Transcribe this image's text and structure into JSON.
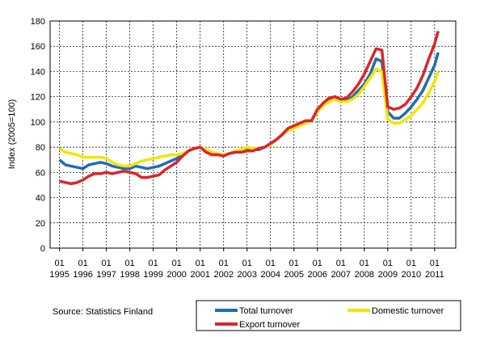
{
  "chart_data": {
    "type": "line",
    "y_label": "Index (2005=100)",
    "source": "Source: Statistics Finland",
    "x": [
      1995,
      1995.25,
      1995.5,
      1995.75,
      1996,
      1996.25,
      1996.5,
      1996.75,
      1997,
      1997.25,
      1997.5,
      1997.75,
      1998,
      1998.25,
      1998.5,
      1998.75,
      1999,
      1999.25,
      1999.5,
      1999.75,
      2000,
      2000.25,
      2000.5,
      2000.75,
      2001,
      2001.25,
      2001.5,
      2001.75,
      2002,
      2002.25,
      2002.5,
      2002.75,
      2003,
      2003.25,
      2003.5,
      2003.75,
      2004,
      2004.25,
      2004.5,
      2004.75,
      2005,
      2005.25,
      2005.5,
      2005.75,
      2006,
      2006.25,
      2006.5,
      2006.75,
      2007,
      2007.25,
      2007.5,
      2007.75,
      2008,
      2008.25,
      2008.5,
      2008.75,
      2009,
      2009.25,
      2009.5,
      2009.75,
      2010,
      2010.25,
      2010.5,
      2010.75,
      2011,
      2011.15
    ],
    "series": [
      {
        "name": "Total turnover",
        "color": "#1f6db5",
        "values": [
          70,
          66,
          65,
          64,
          63,
          66,
          67,
          68,
          67,
          65,
          64,
          63,
          63,
          65,
          64,
          63,
          64,
          65,
          67,
          69,
          71,
          74,
          77,
          79,
          80,
          77,
          75,
          74,
          74,
          75,
          76,
          77,
          78,
          78,
          78,
          80,
          82,
          86,
          90,
          94,
          96,
          98,
          100,
          101,
          108,
          114,
          117,
          120,
          117,
          117,
          120,
          125,
          130,
          138,
          150,
          148,
          108,
          103,
          103,
          107,
          112,
          118,
          125,
          135,
          145,
          155
        ]
      },
      {
        "name": "Domestic turnover",
        "color": "#f2e600",
        "values": [
          79,
          76,
          75,
          74,
          72,
          72,
          72,
          72,
          71,
          68,
          66,
          65,
          65,
          67,
          69,
          70,
          71,
          72,
          73,
          74,
          74,
          75,
          77,
          79,
          80,
          78,
          76,
          75,
          74,
          75,
          77,
          78,
          80,
          79,
          79,
          80,
          82,
          86,
          90,
          93,
          95,
          97,
          99,
          101,
          108,
          113,
          116,
          118,
          116,
          116,
          118,
          122,
          128,
          135,
          142,
          140,
          102,
          99,
          99,
          102,
          105,
          110,
          115,
          123,
          132,
          140
        ]
      },
      {
        "name": "Export turnover",
        "color": "#d9262b",
        "values": [
          53,
          52,
          51,
          52,
          54,
          57,
          59,
          59,
          60,
          59,
          60,
          61,
          60,
          59,
          56,
          56,
          57,
          58,
          62,
          65,
          68,
          73,
          77,
          79,
          80,
          76,
          74,
          74,
          73,
          75,
          76,
          76,
          77,
          77,
          79,
          80,
          83,
          86,
          90,
          95,
          97,
          99,
          101,
          101,
          110,
          115,
          119,
          120,
          118,
          119,
          124,
          130,
          138,
          148,
          158,
          157,
          112,
          110,
          111,
          114,
          120,
          127,
          137,
          150,
          162,
          172
        ]
      }
    ],
    "xlim": [
      1994.6,
      2011.9
    ],
    "xticks": [
      {
        "value": 1995,
        "label": [
          "01",
          "1995"
        ]
      },
      {
        "value": 1996,
        "label": [
          "01",
          "1996"
        ]
      },
      {
        "value": 1997,
        "label": [
          "01",
          "1997"
        ]
      },
      {
        "value": 1998,
        "label": [
          "01",
          "1998"
        ]
      },
      {
        "value": 1999,
        "label": [
          "01",
          "1999"
        ]
      },
      {
        "value": 2000,
        "label": [
          "01",
          "2000"
        ]
      },
      {
        "value": 2001,
        "label": [
          "01",
          "2001"
        ]
      },
      {
        "value": 2002,
        "label": [
          "01",
          "2002"
        ]
      },
      {
        "value": 2003,
        "label": [
          "01",
          "2003"
        ]
      },
      {
        "value": 2004,
        "label": [
          "01",
          "2004"
        ]
      },
      {
        "value": 2005,
        "label": [
          "01",
          "2005"
        ]
      },
      {
        "value": 2006,
        "label": [
          "01",
          "2006"
        ]
      },
      {
        "value": 2007,
        "label": [
          "01",
          "2007"
        ]
      },
      {
        "value": 2008,
        "label": [
          "01",
          "2008"
        ]
      },
      {
        "value": 2009,
        "label": [
          "01",
          "2009"
        ]
      },
      {
        "value": 2010,
        "label": [
          "01",
          "2010"
        ]
      },
      {
        "value": 2011,
        "label": [
          "01",
          "2011"
        ]
      }
    ],
    "ylim": [
      0,
      180
    ],
    "yticks": [
      0,
      20,
      40,
      60,
      80,
      100,
      120,
      140,
      160,
      180
    ],
    "grid": true
  }
}
